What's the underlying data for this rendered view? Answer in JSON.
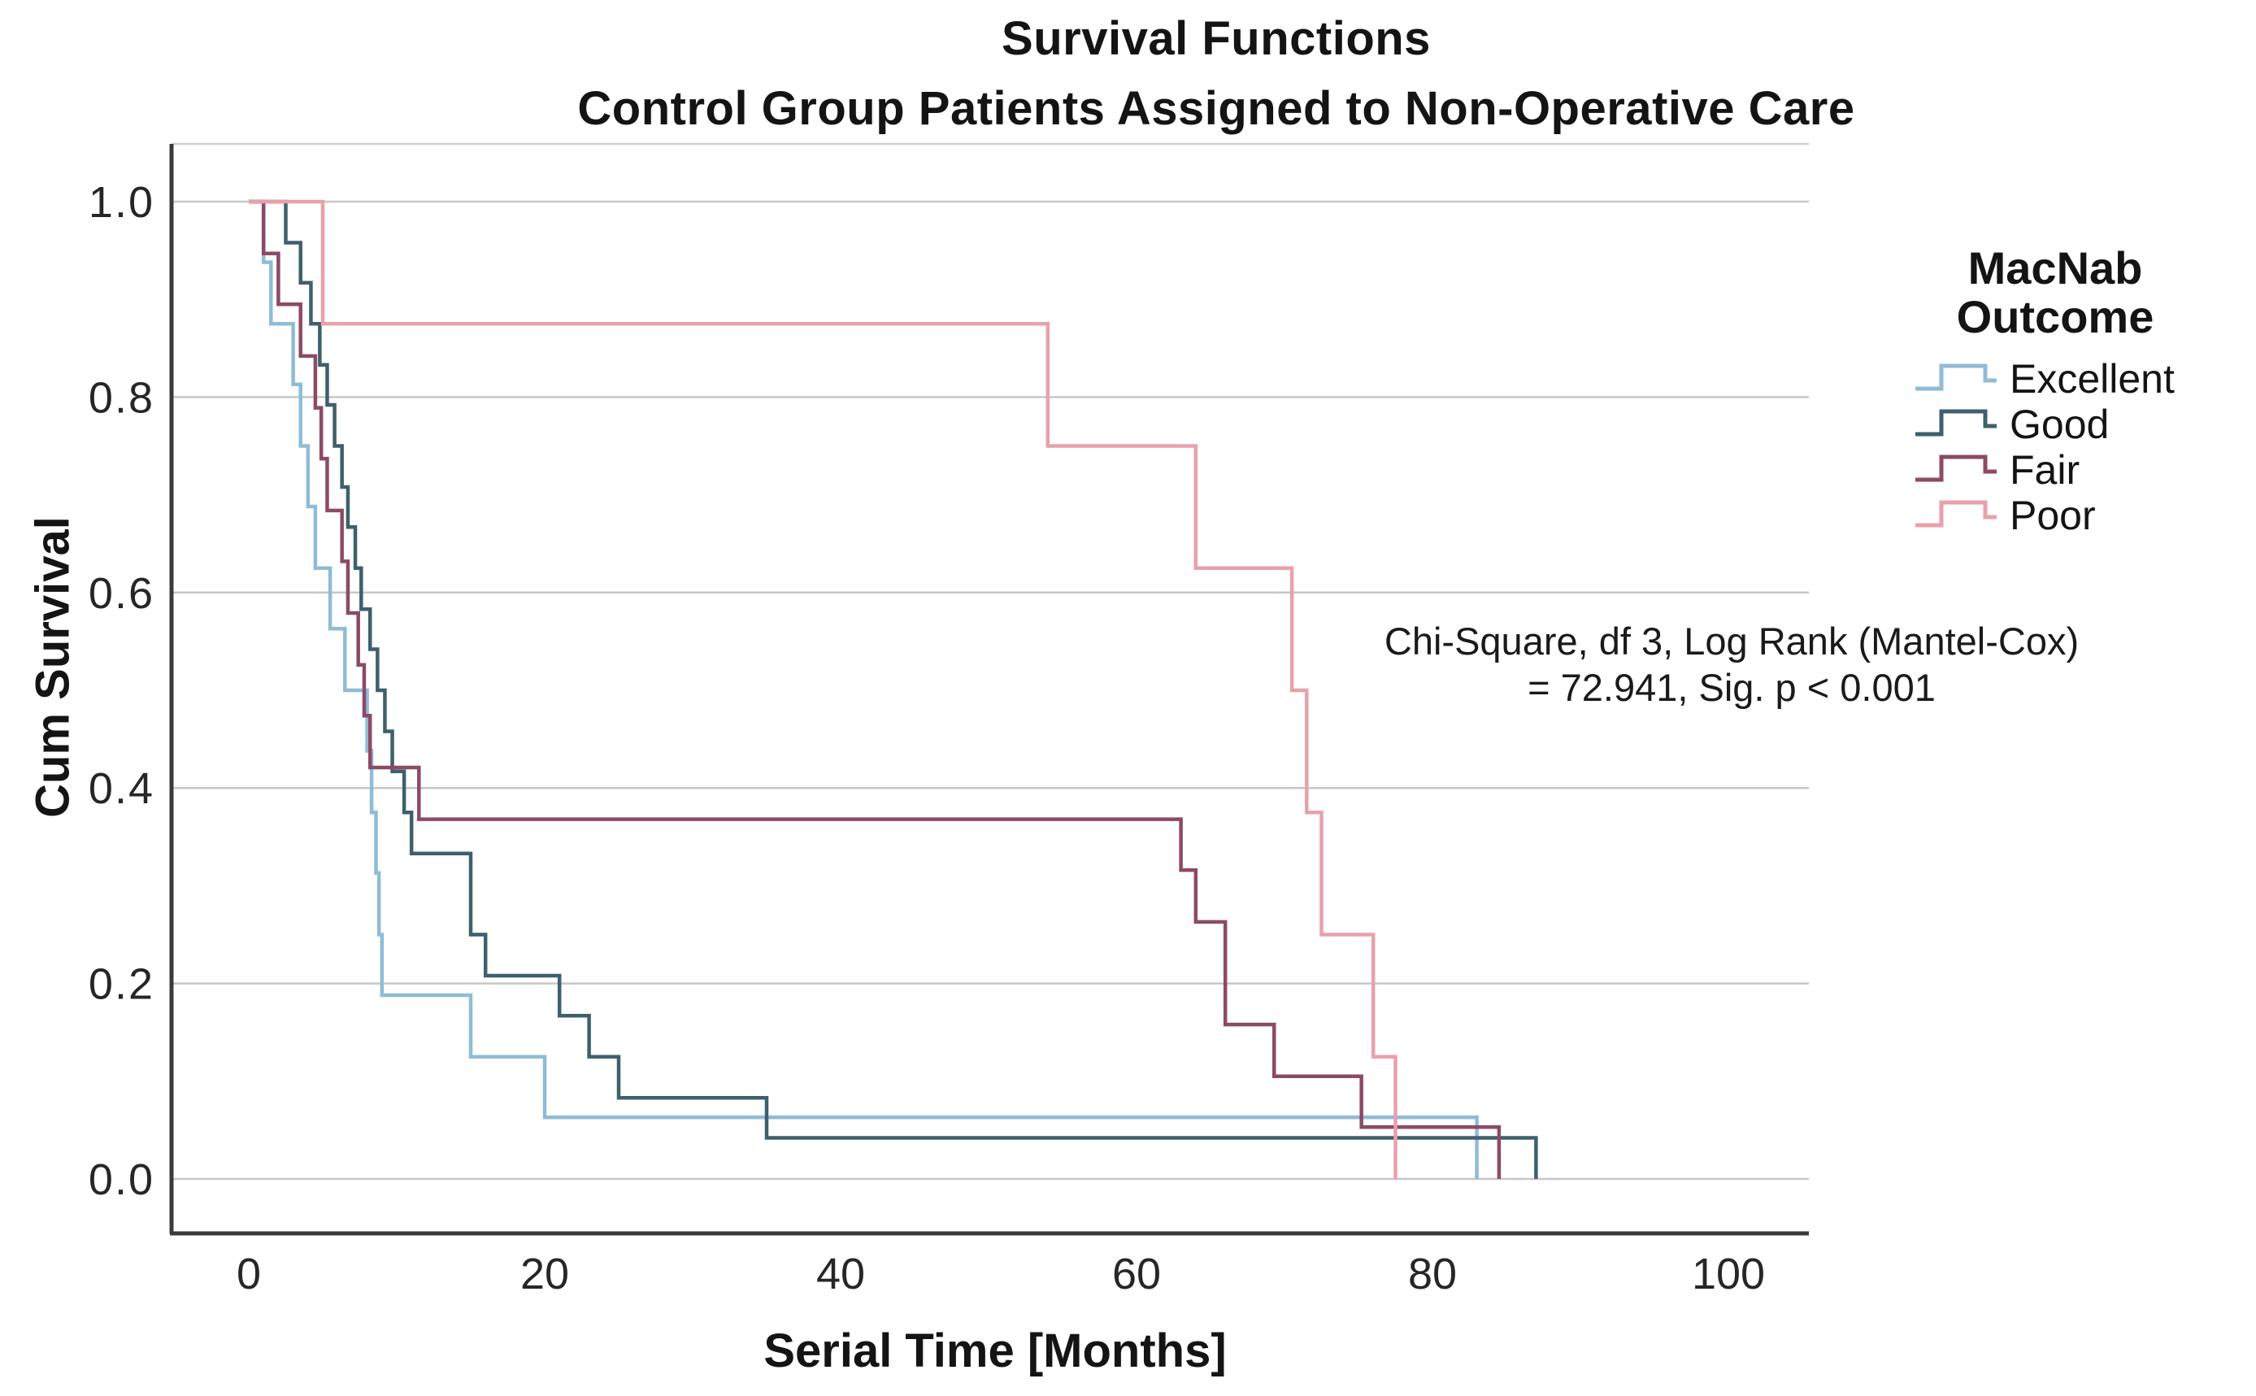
{
  "header": {
    "title": "Survival Functions",
    "subtitle": "Control Group Patients Assigned to Non-Operative Care"
  },
  "legend": {
    "title_line1": "MacNab",
    "title_line2": "Outcome",
    "items": [
      {
        "label": "Excellent",
        "color": "#8fbcd6"
      },
      {
        "label": "Good",
        "color": "#3e606c"
      },
      {
        "label": "Fair",
        "color": "#8c4a66"
      },
      {
        "label": "Poor",
        "color": "#e9a0ab"
      }
    ]
  },
  "annotation": {
    "line1": "Chi-Square, df 3, Log Rank (Mantel-Cox)",
    "line2": "= 72.941, Sig. p < 0.001"
  },
  "chart_data": {
    "type": "line",
    "subtype": "kaplan-meier-step",
    "title": "Survival Functions",
    "subtitle": "Control Group Patients Assigned to Non-Operative Care",
    "xlabel": "Serial Time [Months]",
    "ylabel": "Cum Survival",
    "xlim": [
      -5.2,
      105.4
    ],
    "ylim": [
      0.0,
      1.0
    ],
    "xticks": [
      0,
      20,
      40,
      60,
      80,
      100
    ],
    "xtick_labels": [
      "0",
      "20",
      "40",
      "60",
      "80",
      "100"
    ],
    "yticks": [
      1.0,
      0.8,
      0.6,
      0.4,
      0.2,
      0.0
    ],
    "ytick_labels": [
      "1.0",
      "0.8",
      "0.6",
      "0.4",
      "0.2",
      "0.0"
    ],
    "grid": true,
    "legend_position": "right",
    "legend_title": "MacNab Outcome",
    "series": [
      {
        "name": "Excellent",
        "color": "#8fbcd6",
        "points": [
          [
            0,
            1.0
          ],
          [
            1,
            0.938
          ],
          [
            1.5,
            0.875
          ],
          [
            3,
            0.813
          ],
          [
            3.5,
            0.75
          ],
          [
            4,
            0.688
          ],
          [
            4.5,
            0.625
          ],
          [
            5.5,
            0.563
          ],
          [
            6.5,
            0.5
          ],
          [
            8,
            0.438
          ],
          [
            8.3,
            0.375
          ],
          [
            8.6,
            0.313
          ],
          [
            8.8,
            0.25
          ],
          [
            9,
            0.188
          ],
          [
            15,
            0.125
          ],
          [
            20,
            0.063
          ],
          [
            83,
            0.0
          ]
        ]
      },
      {
        "name": "Good",
        "color": "#3e606c",
        "points": [
          [
            0,
            1.0
          ],
          [
            2.5,
            0.958
          ],
          [
            3.5,
            0.917
          ],
          [
            4.2,
            0.875
          ],
          [
            4.8,
            0.833
          ],
          [
            5.3,
            0.792
          ],
          [
            5.8,
            0.75
          ],
          [
            6.3,
            0.708
          ],
          [
            6.7,
            0.667
          ],
          [
            7.2,
            0.625
          ],
          [
            7.6,
            0.583
          ],
          [
            8.2,
            0.542
          ],
          [
            8.7,
            0.5
          ],
          [
            9.2,
            0.458
          ],
          [
            9.7,
            0.417
          ],
          [
            10.5,
            0.375
          ],
          [
            11,
            0.333
          ],
          [
            15,
            0.25
          ],
          [
            16,
            0.208
          ],
          [
            21,
            0.167
          ],
          [
            23,
            0.125
          ],
          [
            25,
            0.083
          ],
          [
            35,
            0.042
          ],
          [
            87,
            0.0
          ]
        ]
      },
      {
        "name": "Fair",
        "color": "#8c4a66",
        "points": [
          [
            0,
            1.0
          ],
          [
            1,
            0.947
          ],
          [
            2,
            0.895
          ],
          [
            3.5,
            0.842
          ],
          [
            4.5,
            0.789
          ],
          [
            4.9,
            0.737
          ],
          [
            5.3,
            0.684
          ],
          [
            6.3,
            0.632
          ],
          [
            6.7,
            0.579
          ],
          [
            7.4,
            0.526
          ],
          [
            7.8,
            0.474
          ],
          [
            8.2,
            0.421
          ],
          [
            11.5,
            0.368
          ],
          [
            63,
            0.316
          ],
          [
            64,
            0.263
          ],
          [
            66,
            0.158
          ],
          [
            69.3,
            0.105
          ],
          [
            75.2,
            0.053
          ],
          [
            84.5,
            0.0
          ]
        ]
      },
      {
        "name": "Poor",
        "color": "#e9a0ab",
        "points": [
          [
            0,
            1.0
          ],
          [
            5,
            0.875
          ],
          [
            54,
            0.75
          ],
          [
            64,
            0.625
          ],
          [
            70.5,
            0.5
          ],
          [
            71.5,
            0.375
          ],
          [
            72.5,
            0.25
          ],
          [
            76,
            0.125
          ],
          [
            77.5,
            0.0
          ]
        ]
      }
    ],
    "annotation": "Chi-Square, df 3, Log Rank (Mantel-Cox) = 72.941, Sig. p < 0.001",
    "colors": {
      "grid": "#c7c7c7",
      "axis_frame": "#3a3a3a",
      "frame_light": "#d0d0d0",
      "background": "#ffffff",
      "text": "#141414"
    }
  }
}
